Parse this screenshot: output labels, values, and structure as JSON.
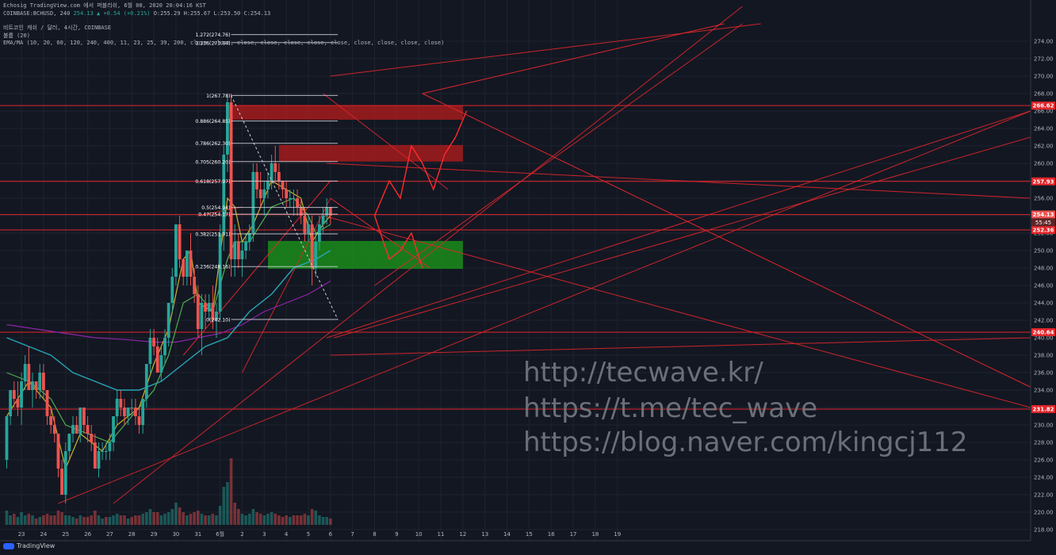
{
  "header": {
    "line1": "Echosig TradingView.com 에서 퍼블리쉬, 6월 08, 2020 20:04:16 KST",
    "symbol": "COINBASE:BCHUSD, 240",
    "last": "254.13",
    "change": "+0.54 (+0.21%)",
    "ohlc": "O:255.29 H:255.67 L:253.50 C:254.13",
    "title": "비트코인 캐쉬 / 달러, 4시간, COINBASE",
    "volume_label": "볼륨 (20)",
    "ema_label": "EMA/MA (10, 20, 60, 120, 240, 400, 11, 23, 25, 39, 200, close, close, close, close, close, close, close, close, close, close, close)"
  },
  "watermark": [
    "http://tecwave.kr/",
    "https://t.me/tec_wave",
    "https://blog.naver.com/kingcj112"
  ],
  "brand": "TradingView",
  "colors": {
    "bg": "#131722",
    "up": "#26a69a",
    "down": "#ef5350",
    "red": "#e0262b",
    "zone_red": "#b71c1c",
    "zone_green": "#1b8c1b",
    "ema_yellow": "#c9b22e",
    "ema_green": "#4caf50",
    "ema_cyan": "#26a6b6",
    "ema_purple": "#8e24aa",
    "fib": "#d1d4dc"
  },
  "chart_data": {
    "type": "candlestick",
    "title": "비트코인 캐쉬 / 달러, 4시간, COINBASE",
    "ylim": [
      216,
      276
    ],
    "yticks": [
      218,
      220,
      222,
      224,
      226,
      228,
      230,
      232,
      234,
      236,
      238,
      240,
      242,
      244,
      246,
      248,
      250,
      252,
      254,
      256,
      258,
      260,
      262,
      264,
      266,
      268,
      270,
      272,
      274
    ],
    "xticks": [
      {
        "label": "23",
        "i": 4
      },
      {
        "label": "24",
        "i": 10
      },
      {
        "label": "25",
        "i": 16
      },
      {
        "label": "26",
        "i": 22
      },
      {
        "label": "27",
        "i": 28
      },
      {
        "label": "28",
        "i": 34
      },
      {
        "label": "29",
        "i": 40
      },
      {
        "label": "30",
        "i": 46
      },
      {
        "label": "31",
        "i": 52
      },
      {
        "label": "6월",
        "i": 58
      },
      {
        "label": "2",
        "i": 64
      },
      {
        "label": "3",
        "i": 70
      },
      {
        "label": "4",
        "i": 76
      },
      {
        "label": "5",
        "i": 82
      },
      {
        "label": "6",
        "i": 88
      },
      {
        "label": "7",
        "i": 94
      },
      {
        "label": "8",
        "i": 100
      },
      {
        "label": "9",
        "i": 106
      },
      {
        "label": "10",
        "i": 112
      },
      {
        "label": "11",
        "i": 118
      },
      {
        "label": "12",
        "i": 124
      },
      {
        "label": "13",
        "i": 130
      },
      {
        "label": "14",
        "i": 136
      },
      {
        "label": "15",
        "i": 142
      },
      {
        "label": "16",
        "i": 148
      },
      {
        "label": "17",
        "i": 154
      },
      {
        "label": "18",
        "i": 160
      },
      {
        "label": "19",
        "i": 166
      }
    ],
    "candles": [
      [
        226,
        231,
        225,
        231
      ],
      [
        231,
        234,
        230,
        234
      ],
      [
        234,
        235,
        232,
        233
      ],
      [
        233,
        235,
        231,
        232
      ],
      [
        232,
        236,
        230,
        235
      ],
      [
        235,
        238,
        234,
        237
      ],
      [
        237,
        239,
        234,
        234
      ],
      [
        234,
        236,
        232,
        235
      ],
      [
        235,
        235,
        233,
        234
      ],
      [
        234,
        237,
        233,
        236
      ],
      [
        236,
        237,
        233,
        234
      ],
      [
        234,
        234,
        230,
        231
      ],
      [
        231,
        232,
        229,
        230
      ],
      [
        230,
        231,
        228,
        229
      ],
      [
        229,
        229,
        224,
        225
      ],
      [
        225,
        226,
        222,
        222
      ],
      [
        222,
        228,
        221,
        227
      ],
      [
        227,
        229,
        226,
        229
      ],
      [
        229,
        231,
        228,
        230
      ],
      [
        230,
        231,
        229,
        229
      ],
      [
        229,
        232,
        228,
        232
      ],
      [
        232,
        232,
        229,
        230
      ],
      [
        230,
        231,
        228,
        229
      ],
      [
        229,
        230,
        227,
        228
      ],
      [
        228,
        229,
        225,
        225
      ],
      [
        225,
        228,
        224,
        227
      ],
      [
        227,
        228,
        226,
        227
      ],
      [
        227,
        228,
        226,
        227
      ],
      [
        227,
        229,
        226,
        228
      ],
      [
        228,
        231,
        227,
        231
      ],
      [
        231,
        234,
        230,
        233
      ],
      [
        233,
        234,
        231,
        232
      ],
      [
        232,
        233,
        230,
        231
      ],
      [
        231,
        232,
        230,
        232
      ],
      [
        232,
        233,
        231,
        232
      ],
      [
        232,
        233,
        230,
        231
      ],
      [
        231,
        232,
        229,
        230
      ],
      [
        230,
        233,
        229,
        233
      ],
      [
        233,
        237,
        232,
        237
      ],
      [
        237,
        241,
        236,
        240
      ],
      [
        240,
        241,
        238,
        239
      ],
      [
        239,
        240,
        236,
        236
      ],
      [
        236,
        239,
        235,
        238
      ],
      [
        238,
        241,
        237,
        240
      ],
      [
        240,
        244,
        239,
        244
      ],
      [
        244,
        248,
        243,
        247
      ],
      [
        247,
        253,
        246,
        253
      ],
      [
        253,
        254,
        248,
        249
      ],
      [
        249,
        249,
        246,
        247
      ],
      [
        247,
        250,
        246,
        250
      ],
      [
        250,
        252,
        246,
        247
      ],
      [
        247,
        248,
        244,
        245
      ],
      [
        245,
        246,
        240,
        241
      ],
      [
        241,
        245,
        238,
        244
      ],
      [
        244,
        245,
        241,
        243
      ],
      [
        243,
        245,
        242,
        244
      ],
      [
        244,
        246,
        241,
        242
      ],
      [
        242,
        244,
        240,
        243
      ],
      [
        243,
        253,
        242,
        252
      ],
      [
        252,
        262,
        250,
        261
      ],
      [
        261,
        268,
        259,
        267
      ],
      [
        267,
        268,
        247,
        249
      ],
      [
        249,
        253,
        247,
        251
      ],
      [
        251,
        252,
        248,
        249
      ],
      [
        249,
        251,
        247,
        250
      ],
      [
        250,
        252,
        249,
        251
      ],
      [
        251,
        253,
        250,
        252
      ],
      [
        252,
        260,
        251,
        259
      ],
      [
        259,
        260,
        256,
        257
      ],
      [
        257,
        259,
        255,
        256
      ],
      [
        256,
        258,
        254,
        257
      ],
      [
        257,
        259,
        256,
        258
      ],
      [
        258,
        261,
        257,
        260
      ],
      [
        260,
        262,
        258,
        259
      ],
      [
        259,
        260,
        257,
        258
      ],
      [
        258,
        258,
        256,
        257
      ],
      [
        257,
        258,
        255,
        256
      ],
      [
        256,
        257,
        255,
        256
      ],
      [
        256,
        257,
        254,
        256
      ],
      [
        256,
        257,
        254,
        255
      ],
      [
        255,
        256,
        253,
        254
      ],
      [
        254,
        255,
        251,
        252
      ],
      [
        252,
        254,
        251,
        253
      ],
      [
        253,
        254,
        246,
        248
      ],
      [
        248,
        252,
        247,
        251
      ],
      [
        251,
        254,
        250,
        253
      ],
      [
        253,
        255,
        252,
        254
      ],
      [
        254,
        256,
        253,
        255
      ],
      [
        255,
        255,
        253,
        254
      ]
    ],
    "volume": [
      [
        0.45,
        "up"
      ],
      [
        0.3,
        "up"
      ],
      [
        0.35,
        "down"
      ],
      [
        0.25,
        "up"
      ],
      [
        0.4,
        "up"
      ],
      [
        0.3,
        "up"
      ],
      [
        0.35,
        "down"
      ],
      [
        0.3,
        "up"
      ],
      [
        0.2,
        "down"
      ],
      [
        0.25,
        "up"
      ],
      [
        0.3,
        "down"
      ],
      [
        0.35,
        "down"
      ],
      [
        0.3,
        "down"
      ],
      [
        0.3,
        "down"
      ],
      [
        0.45,
        "down"
      ],
      [
        0.4,
        "down"
      ],
      [
        0.3,
        "up"
      ],
      [
        0.3,
        "up"
      ],
      [
        0.25,
        "up"
      ],
      [
        0.2,
        "down"
      ],
      [
        0.3,
        "up"
      ],
      [
        0.25,
        "down"
      ],
      [
        0.25,
        "down"
      ],
      [
        0.3,
        "down"
      ],
      [
        0.45,
        "down"
      ],
      [
        0.3,
        "up"
      ],
      [
        0.2,
        "up"
      ],
      [
        0.25,
        "down"
      ],
      [
        0.25,
        "up"
      ],
      [
        0.3,
        "up"
      ],
      [
        0.35,
        "up"
      ],
      [
        0.3,
        "down"
      ],
      [
        0.3,
        "down"
      ],
      [
        0.2,
        "up"
      ],
      [
        0.25,
        "down"
      ],
      [
        0.3,
        "down"
      ],
      [
        0.3,
        "down"
      ],
      [
        0.35,
        "up"
      ],
      [
        0.4,
        "up"
      ],
      [
        0.5,
        "up"
      ],
      [
        0.4,
        "down"
      ],
      [
        0.4,
        "down"
      ],
      [
        0.3,
        "up"
      ],
      [
        0.35,
        "up"
      ],
      [
        0.4,
        "up"
      ],
      [
        0.5,
        "up"
      ],
      [
        0.7,
        "up"
      ],
      [
        0.55,
        "down"
      ],
      [
        0.4,
        "down"
      ],
      [
        0.3,
        "up"
      ],
      [
        0.35,
        "down"
      ],
      [
        0.4,
        "down"
      ],
      [
        0.45,
        "down"
      ],
      [
        0.35,
        "up"
      ],
      [
        0.3,
        "down"
      ],
      [
        0.3,
        "up"
      ],
      [
        0.35,
        "down"
      ],
      [
        0.3,
        "up"
      ],
      [
        0.6,
        "up"
      ],
      [
        1.2,
        "up"
      ],
      [
        1.35,
        "up"
      ],
      [
        2.1,
        "down"
      ],
      [
        0.7,
        "down"
      ],
      [
        0.5,
        "down"
      ],
      [
        0.35,
        "up"
      ],
      [
        0.3,
        "up"
      ],
      [
        0.35,
        "up"
      ],
      [
        0.5,
        "up"
      ],
      [
        0.4,
        "down"
      ],
      [
        0.35,
        "down"
      ],
      [
        0.3,
        "up"
      ],
      [
        0.35,
        "up"
      ],
      [
        0.4,
        "up"
      ],
      [
        0.35,
        "down"
      ],
      [
        0.3,
        "down"
      ],
      [
        0.25,
        "down"
      ],
      [
        0.3,
        "down"
      ],
      [
        0.25,
        "up"
      ],
      [
        0.3,
        "down"
      ],
      [
        0.3,
        "down"
      ],
      [
        0.3,
        "down"
      ],
      [
        0.35,
        "down"
      ],
      [
        0.3,
        "up"
      ],
      [
        0.5,
        "down"
      ],
      [
        0.45,
        "up"
      ],
      [
        0.3,
        "up"
      ],
      [
        0.25,
        "up"
      ],
      [
        0.25,
        "up"
      ],
      [
        0.2,
        "down"
      ]
    ],
    "ema_fast": [
      [
        0,
        231
      ],
      [
        6,
        235
      ],
      [
        12,
        232
      ],
      [
        16,
        225
      ],
      [
        20,
        229
      ],
      [
        26,
        227
      ],
      [
        30,
        230
      ],
      [
        36,
        232
      ],
      [
        40,
        237
      ],
      [
        44,
        241
      ],
      [
        48,
        249
      ],
      [
        50,
        250
      ],
      [
        52,
        244
      ],
      [
        56,
        243
      ],
      [
        60,
        256
      ],
      [
        62,
        255
      ],
      [
        64,
        251
      ],
      [
        67,
        253
      ],
      [
        72,
        258
      ],
      [
        76,
        257
      ],
      [
        80,
        256
      ],
      [
        83,
        251
      ],
      [
        86,
        253
      ],
      [
        88,
        254
      ]
    ],
    "ema_mid": [
      [
        0,
        236
      ],
      [
        6,
        235
      ],
      [
        12,
        233
      ],
      [
        16,
        230
      ],
      [
        22,
        229
      ],
      [
        28,
        228
      ],
      [
        34,
        231
      ],
      [
        40,
        234
      ],
      [
        44,
        238
      ],
      [
        48,
        244
      ],
      [
        52,
        245
      ],
      [
        56,
        243
      ],
      [
        60,
        249
      ],
      [
        62,
        251
      ],
      [
        66,
        251
      ],
      [
        72,
        255
      ],
      [
        78,
        256
      ],
      [
        82,
        254
      ],
      [
        84,
        252
      ],
      [
        88,
        253
      ]
    ],
    "ema_slow": [
      [
        0,
        240
      ],
      [
        6,
        239
      ],
      [
        12,
        238
      ],
      [
        18,
        236
      ],
      [
        24,
        235
      ],
      [
        30,
        234
      ],
      [
        36,
        234
      ],
      [
        42,
        235
      ],
      [
        48,
        237
      ],
      [
        54,
        239
      ],
      [
        60,
        240
      ],
      [
        66,
        243
      ],
      [
        72,
        245
      ],
      [
        78,
        248
      ],
      [
        84,
        249
      ],
      [
        88,
        250
      ]
    ],
    "ema_long": [
      [
        0,
        241.5
      ],
      [
        8,
        241
      ],
      [
        16,
        240.5
      ],
      [
        24,
        240
      ],
      [
        32,
        239.8
      ],
      [
        40,
        239.5
      ],
      [
        46,
        239.5
      ],
      [
        52,
        240
      ],
      [
        58,
        240.5
      ],
      [
        64,
        241.5
      ],
      [
        70,
        243
      ],
      [
        76,
        244
      ],
      [
        82,
        245
      ],
      [
        88,
        246.5
      ]
    ],
    "fib_levels": [
      {
        "label": "1.272(274.76)",
        "v": 274.76
      },
      {
        "label": "1.236(273.84)",
        "v": 273.84
      },
      {
        "label": "1(267.78)",
        "v": 267.78
      },
      {
        "label": "0.886(264.85)",
        "v": 264.85
      },
      {
        "label": "0.786(262.30)",
        "v": 262.3
      },
      {
        "label": "0.705(260.20)",
        "v": 260.2
      },
      {
        "label": "0.618(257.97)",
        "v": 257.97
      },
      {
        "label": "0.5(254.94)",
        "v": 254.94
      },
      {
        "label": "0.47(254.17)",
        "v": 254.17
      },
      {
        "label": "0.382(251.91)",
        "v": 251.91
      },
      {
        "label": "0.236(248.16)",
        "v": 248.16
      },
      {
        "label": "0(242.10)",
        "v": 242.1
      }
    ],
    "price_levels": [
      {
        "label": "266.62",
        "v": 266.62
      },
      {
        "label": "257.93",
        "v": 257.93
      },
      {
        "label": "254.13",
        "v": 254.13
      },
      {
        "label": "252.36",
        "v": 252.36
      },
      {
        "label": "240.64",
        "v": 240.64
      },
      {
        "label": "231.82",
        "v": 231.82
      }
    ],
    "countdown_label": "55:45",
    "zones": [
      {
        "type": "resistance",
        "from": 265,
        "to": 266.6,
        "i0": 60,
        "i1": 124
      },
      {
        "type": "resistance",
        "from": 260.2,
        "to": 262.1,
        "i0": 74,
        "i1": 124
      },
      {
        "type": "support",
        "from": 247.9,
        "to": 251.1,
        "i0": 71,
        "i1": 124
      }
    ]
  }
}
